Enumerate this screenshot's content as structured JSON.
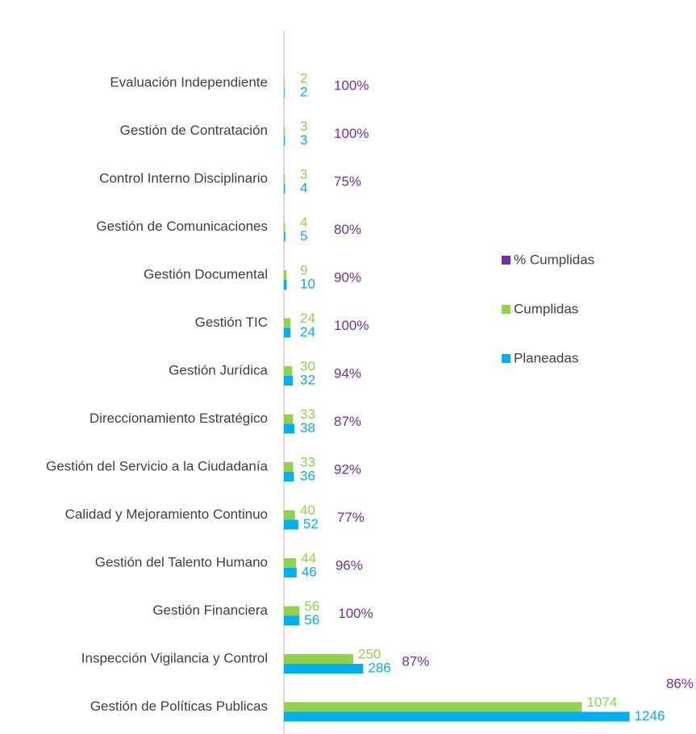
{
  "chart_data": {
    "type": "bar",
    "orientation": "horizontal",
    "categories": [
      "Evaluación Independiente",
      "Gestión de Contratación",
      "Control Interno Disciplinario",
      "Gestión de Comunicaciones",
      "Gestión Documental",
      "Gestión TIC",
      "Gestión Jurídica",
      "Direccionamiento Estratégico",
      "Gestión del Servicio a la Ciudadanía",
      "Calidad y Mejoramiento Continuo",
      "Gestión del Talento Humano",
      "Gestión Financiera",
      "Inspección Vigilancia y Control",
      "Gestión de Políticas Publicas"
    ],
    "series": [
      {
        "name": "% Cumplidas",
        "color": "#7030a0",
        "values": [
          100,
          100,
          75,
          80,
          90,
          100,
          94,
          87,
          92,
          77,
          96,
          100,
          87,
          86
        ],
        "value_labels": [
          "100%",
          "100%",
          "75%",
          "80%",
          "90%",
          "100%",
          "94%",
          "87%",
          "92%",
          "77%",
          "96%",
          "100%",
          "87%",
          "86%"
        ]
      },
      {
        "name": "Cumplidas",
        "color": "#92d050",
        "values": [
          2,
          3,
          3,
          4,
          9,
          24,
          30,
          33,
          33,
          40,
          44,
          56,
          250,
          1074
        ]
      },
      {
        "name": "Planeadas",
        "color": "#00b0f0",
        "values": [
          2,
          3,
          4,
          5,
          10,
          24,
          32,
          38,
          36,
          52,
          46,
          56,
          286,
          1246
        ]
      }
    ],
    "xlim": [
      0,
      1250
    ],
    "legend": "right"
  }
}
